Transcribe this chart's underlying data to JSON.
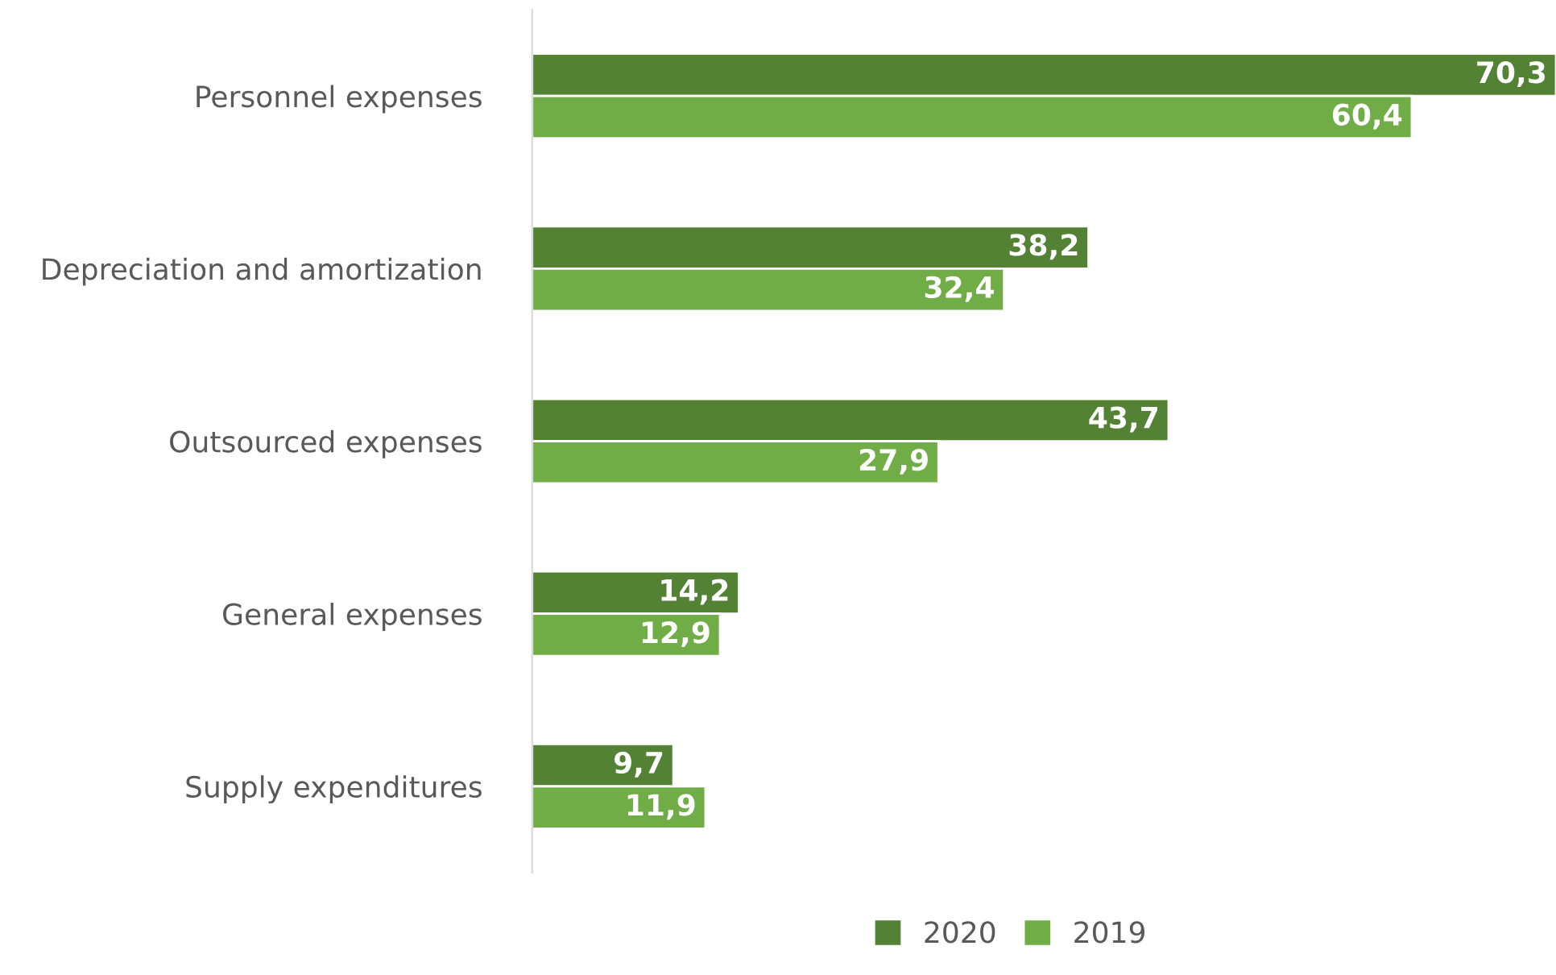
{
  "chart_data": {
    "type": "bar",
    "orientation": "horizontal",
    "categories": [
      "Personnel expenses",
      "Depreciation and amortization",
      "Outsourced expenses",
      "General expenses",
      "Supply expenditures"
    ],
    "series": [
      {
        "name": "2020",
        "color": "#548235",
        "values": [
          70.3,
          38.2,
          43.7,
          14.2,
          9.7
        ],
        "value_labels": [
          "70,3",
          "38,2",
          "43,7",
          "14,2",
          "9,7"
        ]
      },
      {
        "name": "2019",
        "color": "#70ad47",
        "values": [
          60.4,
          32.4,
          27.9,
          12.9,
          11.9
        ],
        "value_labels": [
          "60,4",
          "32,4",
          "27,9",
          "12,9",
          "11,9"
        ]
      }
    ],
    "legend": "bottom",
    "grid": false
  }
}
